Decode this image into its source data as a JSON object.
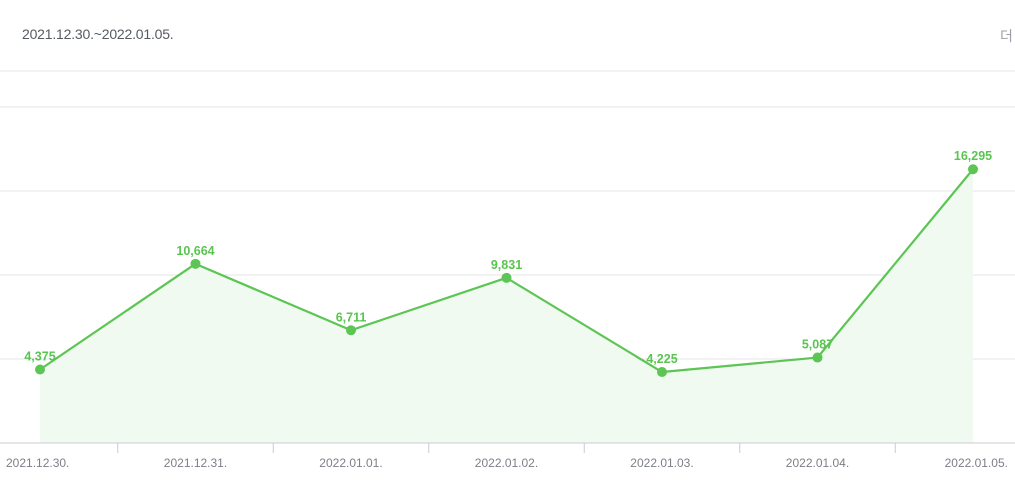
{
  "header": {
    "period": "2021.12.30.~2022.01.05.",
    "more_label": "더"
  },
  "colors": {
    "line": "#5cc554",
    "fill": "#f1faf0",
    "grid": "#e4e6e8",
    "axis": "#c9ccd0"
  },
  "chart_data": {
    "type": "area",
    "categories": [
      "2021.12.30.",
      "2021.12.31.",
      "2022.01.01.",
      "2022.01.02.",
      "2022.01.03.",
      "2022.01.04.",
      "2022.01.05."
    ],
    "series": [
      {
        "values": [
          4375,
          10664,
          6711,
          9831,
          4225,
          5087,
          16295
        ]
      }
    ],
    "data_labels": [
      "4,375",
      "10,664",
      "6,711",
      "9,831",
      "4,225",
      "5,087",
      "16,295"
    ],
    "ylim": [
      0,
      20000
    ],
    "grid": true,
    "markers": true
  }
}
